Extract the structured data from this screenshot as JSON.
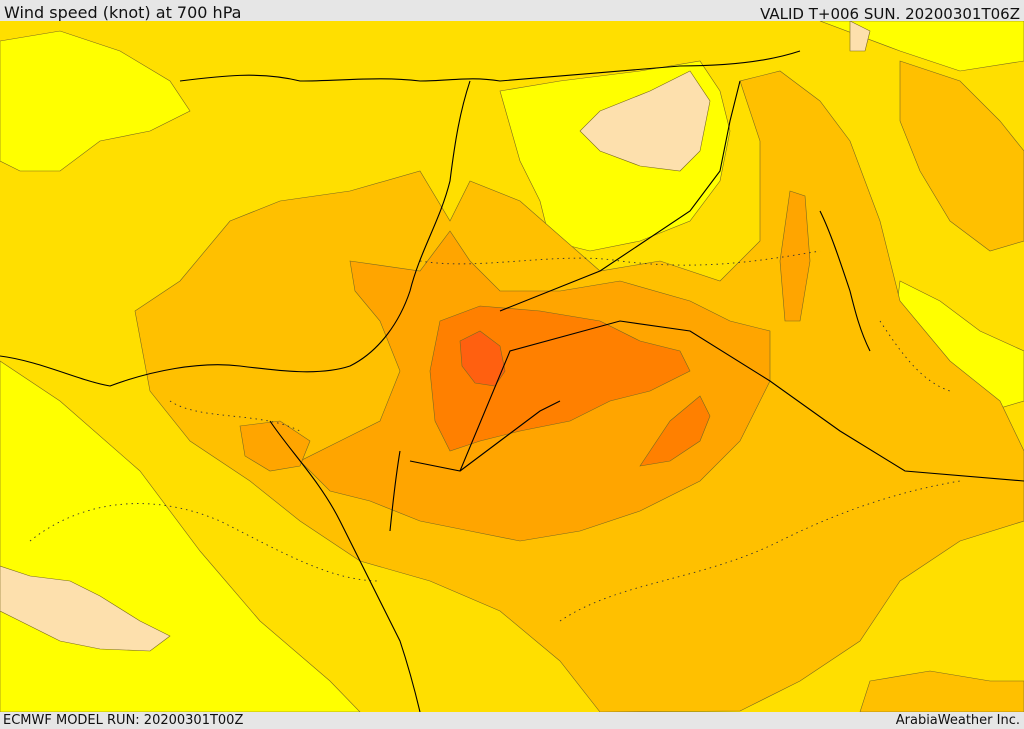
{
  "header": {
    "title": "Wind speed (knot) at 700 hPa",
    "valid": "VALID T+006 SUN. 20200301T06Z"
  },
  "footer": {
    "model_run": "ECMWF MODEL RUN: 20200301T00Z",
    "credit": "ArabiaWeather Inc."
  },
  "colors": {
    "lowest": "#fde0ad",
    "low": "#ffff00",
    "moderate": "#ffdf00",
    "elevated": "#ffc000",
    "high": "#ffa500",
    "very_high": "#ff8000",
    "highest": "#ff6010"
  }
}
